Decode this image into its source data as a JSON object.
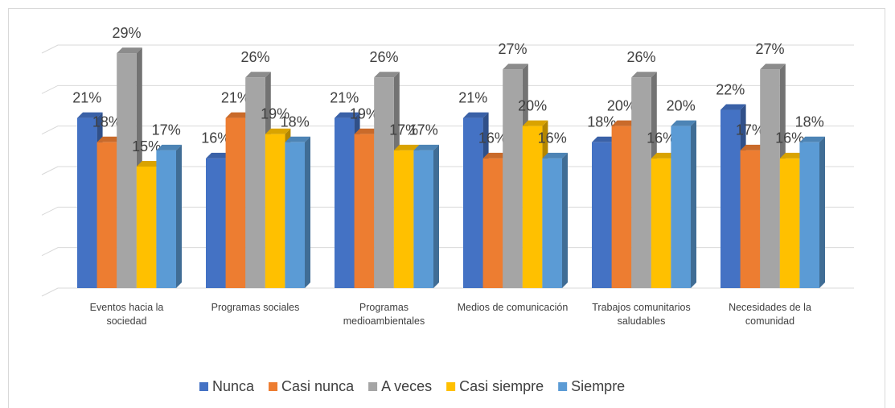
{
  "chart_data": {
    "type": "bar3d",
    "categories": [
      "Eventos hacia la sociedad",
      "Programas sociales",
      "Programas medioambientales",
      "Medios de comunicación",
      "Trabajos comunitarios saludables",
      "Necesidades de la comunidad"
    ],
    "series": [
      {
        "name": "Nunca",
        "color": "#4472c4",
        "values": [
          21,
          16,
          21,
          21,
          18,
          22
        ],
        "value_labels": [
          "21%",
          "16%",
          "21%",
          "21%",
          "18%",
          "22%"
        ]
      },
      {
        "name": "Casi nunca",
        "color": "#ed7d31",
        "values": [
          18,
          21,
          19,
          16,
          20,
          17
        ],
        "value_labels": [
          "18%",
          "21%",
          "19%",
          "16%",
          "20%",
          "17%"
        ]
      },
      {
        "name": "A veces",
        "color": "#a5a5a5",
        "values": [
          29,
          26,
          26,
          27,
          26,
          27
        ],
        "value_labels": [
          "29%",
          "26%",
          "26%",
          "27%",
          "26%",
          "27%"
        ]
      },
      {
        "name": "Casi siempre",
        "color": "#ffc000",
        "values": [
          15,
          19,
          17,
          20,
          16,
          16
        ],
        "value_labels": [
          "15%",
          "19%",
          "17%",
          "20%",
          "16%",
          "16%"
        ]
      },
      {
        "name": "Siempre",
        "color": "#5b9bd5",
        "values": [
          17,
          18,
          17,
          16,
          20,
          18
        ],
        "value_labels": [
          "17%",
          "18%",
          "17%",
          "16%",
          "20%",
          "18%"
        ]
      }
    ],
    "ylim": [
      0,
      30
    ],
    "yticks": [
      0,
      5,
      10,
      15,
      20,
      25,
      30
    ],
    "grid": true,
    "legend": "bottom"
  }
}
